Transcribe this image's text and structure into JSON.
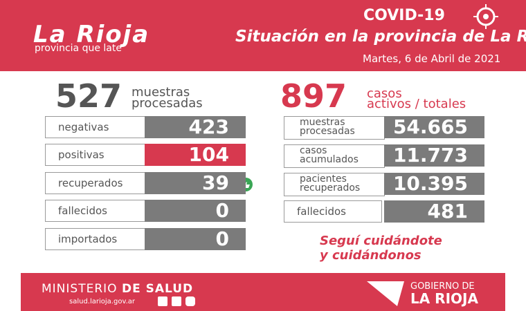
{
  "header": {
    "logo": "La Rioja",
    "tagline": "provincia que late",
    "badge": "COVID-19",
    "title": "Situación en la provincia de La Rioja",
    "date": "Martes, 6 de Abril de 2021"
  },
  "left": {
    "total": "527",
    "total_label_1": "muestras",
    "total_label_2": "procesadas",
    "rows": [
      {
        "label": "negativas",
        "value": "423"
      },
      {
        "label": "positivas",
        "value": "104"
      },
      {
        "label": "recuperados",
        "value": "39"
      },
      {
        "label": "fallecidos",
        "value": "0"
      },
      {
        "label": "importados",
        "value": "0"
      }
    ]
  },
  "right": {
    "total": "897",
    "total_label_1": "casos",
    "total_label_2": "activos / totales",
    "rows": [
      {
        "label_1": "muestras",
        "label_2": "procesadas",
        "value": "54.665"
      },
      {
        "label_1": "casos",
        "label_2": "acumulados",
        "value": "11.773"
      },
      {
        "label_1": "pacientes",
        "label_2": "recuperados",
        "value": "10.395"
      },
      {
        "label_1": "fallecidos",
        "label_2": null,
        "value": "481"
      }
    ]
  },
  "message": {
    "line_1": "Seguí cuidándote",
    "line_2": "y cuidándonos"
  },
  "footer": {
    "ministry_1": "MINISTERIO",
    "ministry_2": "DE SALUD",
    "website": "salud.larioja.gov.ar",
    "gov_1": "GOBIERNO DE",
    "gov_2": "LA RIOJA"
  }
}
